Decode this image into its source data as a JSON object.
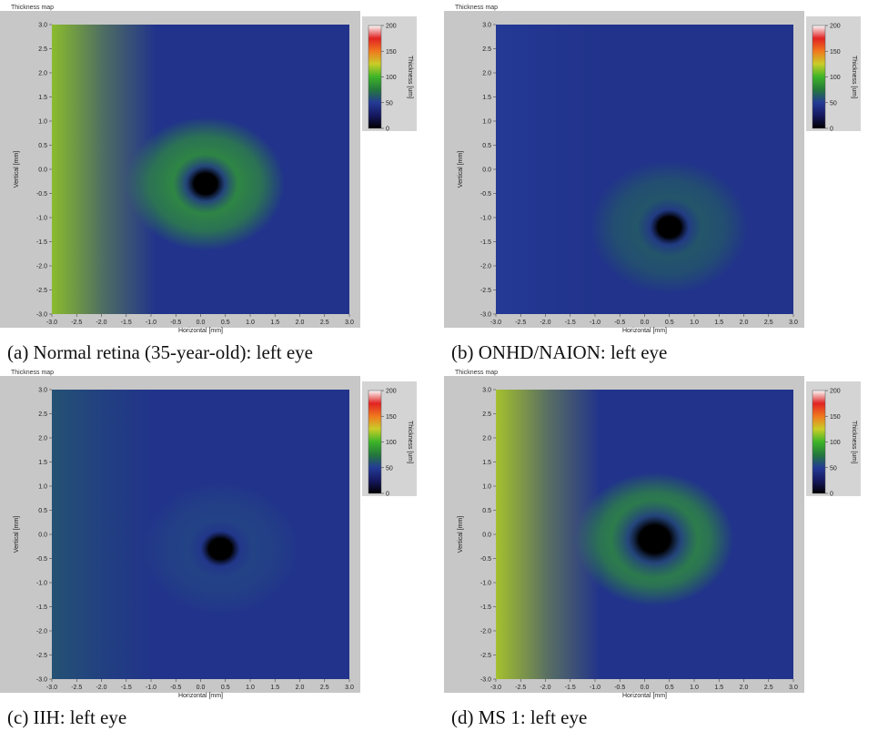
{
  "chart_data": [
    {
      "type": "heatmap",
      "panel_title": "Thickness map",
      "caption": "(a) Normal retina (35-year-old): left eye",
      "xlabel": "Horizontal [mm]",
      "ylabel": "Vertical [mm]",
      "colorbar_label": "Thickness [um]",
      "xlim": [
        -3.0,
        3.0
      ],
      "ylim": [
        -3.0,
        3.0
      ],
      "x_ticks": [
        "-3.0",
        "-2.5",
        "-2.0",
        "-1.5",
        "-1.0",
        "-0.5",
        "0.0",
        "0.5",
        "1.0",
        "1.5",
        "2.0",
        "2.5",
        "3.0"
      ],
      "y_ticks": [
        "3.0",
        "2.5",
        "2.0",
        "1.5",
        "1.0",
        "0.5",
        "0.0",
        "-0.5",
        "-1.0",
        "-1.5",
        "-2.0",
        "-2.5",
        "-3.0"
      ],
      "colorbar_ticks": [
        "200",
        "150",
        "100",
        "50",
        "0"
      ],
      "colorbar_range": [
        0,
        200
      ],
      "fovea_center_mm": [
        0.1,
        -0.3
      ],
      "fovea_radius_mm": 0.3,
      "thickness_estimates_um": {
        "fovea": 0,
        "near_fovea": 45,
        "macular_ring": 90,
        "far_nasal": 45,
        "temporal_edge": 115
      }
    },
    {
      "type": "heatmap",
      "panel_title": "Thickness map",
      "caption": "(b) ONHD/NAION: left eye",
      "xlabel": "Horizontal [mm]",
      "ylabel": "Vertical [mm]",
      "colorbar_label": "Thickness [um]",
      "xlim": [
        -3.0,
        3.0
      ],
      "ylim": [
        -3.0,
        3.0
      ],
      "x_ticks": [
        "-3.0",
        "-2.5",
        "-2.0",
        "-1.5",
        "-1.0",
        "-0.5",
        "0.0",
        "0.5",
        "1.0",
        "1.5",
        "2.0",
        "2.5",
        "3.0"
      ],
      "y_ticks": [
        "3.0",
        "2.5",
        "2.0",
        "1.5",
        "1.0",
        "0.5",
        "0.0",
        "-0.5",
        "-1.0",
        "-1.5",
        "-2.0",
        "-2.5",
        "-3.0"
      ],
      "colorbar_ticks": [
        "200",
        "150",
        "100",
        "50",
        "0"
      ],
      "colorbar_range": [
        0,
        200
      ],
      "fovea_center_mm": [
        0.5,
        -1.2
      ],
      "fovea_radius_mm": 0.3,
      "thickness_estimates_um": {
        "fovea": 0,
        "near_fovea": 45,
        "macular_ring": 65,
        "far_nasal": 45,
        "temporal_edge": 50
      }
    },
    {
      "type": "heatmap",
      "panel_title": "Thickness map",
      "caption": "(c) IIH: left eye",
      "xlabel": "Horizontal [mm]",
      "ylabel": "Vertical [mm]",
      "colorbar_label": "Thickness [um]",
      "xlim": [
        -3.0,
        3.0
      ],
      "ylim": [
        -3.0,
        3.0
      ],
      "x_ticks": [
        "-3.0",
        "-2.5",
        "-2.0",
        "-1.5",
        "-1.0",
        "-0.5",
        "0.0",
        "0.5",
        "1.0",
        "1.5",
        "2.0",
        "2.5",
        "3.0"
      ],
      "y_ticks": [
        "3.0",
        "2.5",
        "2.0",
        "1.5",
        "1.0",
        "0.5",
        "0.0",
        "-0.5",
        "-1.0",
        "-1.5",
        "-2.0",
        "-2.5",
        "-3.0"
      ],
      "colorbar_ticks": [
        "200",
        "150",
        "100",
        "50",
        "0"
      ],
      "colorbar_range": [
        0,
        200
      ],
      "fovea_center_mm": [
        0.4,
        -0.3
      ],
      "fovea_radius_mm": 0.3,
      "thickness_estimates_um": {
        "fovea": 0,
        "near_fovea": 45,
        "macular_ring": 55,
        "far_nasal": 45,
        "temporal_edge": 60
      }
    },
    {
      "type": "heatmap",
      "panel_title": "Thickness map",
      "caption": "(d) MS 1: left eye",
      "xlabel": "Horizontal [mm]",
      "ylabel": "Vertical [mm]",
      "colorbar_label": "Thickness [um]",
      "xlim": [
        -3.0,
        3.0
      ],
      "ylim": [
        -3.0,
        3.0
      ],
      "x_ticks": [
        "-3.0",
        "-2.5",
        "-2.0",
        "-1.5",
        "-1.0",
        "-0.5",
        "0.0",
        "0.5",
        "1.0",
        "1.5",
        "2.0",
        "2.5",
        "3.0"
      ],
      "y_ticks": [
        "3.0",
        "2.5",
        "2.0",
        "1.5",
        "1.0",
        "0.5",
        "0.0",
        "-0.5",
        "-1.0",
        "-1.5",
        "-2.0",
        "-2.5",
        "-3.0"
      ],
      "colorbar_ticks": [
        "200",
        "150",
        "100",
        "50",
        "0"
      ],
      "colorbar_range": [
        0,
        200
      ],
      "fovea_center_mm": [
        0.2,
        -0.1
      ],
      "fovea_radius_mm": 0.4,
      "thickness_estimates_um": {
        "fovea": 0,
        "near_fovea": 45,
        "macular_ring": 90,
        "far_nasal": 45,
        "temporal_edge": 120
      }
    }
  ],
  "colors": {
    "frame": "#c7c7c7",
    "plot_background": "#253a8e",
    "tick_text": "#222222"
  }
}
